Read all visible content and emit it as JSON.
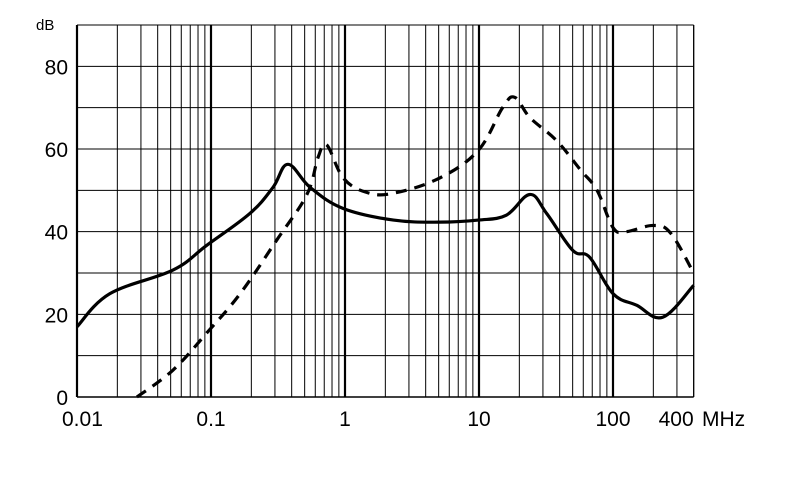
{
  "chart_data": {
    "type": "line",
    "title": "",
    "xlabel": "MHz",
    "ylabel": "dB",
    "x_scale": "log",
    "xlim": [
      0.01,
      400
    ],
    "ylim": [
      0,
      90
    ],
    "grid": true,
    "x_ticks": [
      {
        "value": 0.01,
        "label": "0.01"
      },
      {
        "value": 0.1,
        "label": "0.1"
      },
      {
        "value": 1,
        "label": "1"
      },
      {
        "value": 10,
        "label": "10"
      },
      {
        "value": 100,
        "label": "100"
      },
      {
        "value": 400,
        "label": "400"
      }
    ],
    "y_ticks": [
      {
        "value": 0,
        "label": "0"
      },
      {
        "value": 20,
        "label": "20"
      },
      {
        "value": 40,
        "label": "40"
      },
      {
        "value": 60,
        "label": "60"
      },
      {
        "value": 80,
        "label": "80"
      }
    ],
    "series": [
      {
        "style": "solid",
        "color": "#000000",
        "points": [
          [
            0.01,
            17
          ],
          [
            0.0176,
            25
          ],
          [
            0.052,
            30.7
          ],
          [
            0.093,
            36.7
          ],
          [
            0.195,
            44.4
          ],
          [
            0.29,
            50.7
          ],
          [
            0.375,
            56.3
          ],
          [
            0.55,
            50.7
          ],
          [
            0.97,
            45.6
          ],
          [
            2.3,
            42.8
          ],
          [
            5.1,
            42.3
          ],
          [
            9.9,
            42.8
          ],
          [
            16,
            44
          ],
          [
            24,
            49
          ],
          [
            32,
            44.4
          ],
          [
            50,
            35.5
          ],
          [
            67,
            33.8
          ],
          [
            100,
            25
          ],
          [
            150,
            22.2
          ],
          [
            235,
            19.3
          ],
          [
            400,
            27
          ]
        ]
      },
      {
        "style": "dashed",
        "color": "#000000",
        "points": [
          [
            0.028,
            0
          ],
          [
            0.052,
            6.5
          ],
          [
            0.093,
            15.5
          ],
          [
            0.165,
            25
          ],
          [
            0.31,
            38
          ],
          [
            0.52,
            49
          ],
          [
            0.63,
            58
          ],
          [
            0.73,
            61
          ],
          [
            0.97,
            53
          ],
          [
            1.45,
            49.5
          ],
          [
            2.3,
            49.3
          ],
          [
            5.1,
            53
          ],
          [
            9.9,
            59.7
          ],
          [
            15,
            70
          ],
          [
            18.5,
            72.5
          ],
          [
            24,
            67.6
          ],
          [
            38,
            62
          ],
          [
            57,
            55
          ],
          [
            76,
            50
          ],
          [
            100,
            41
          ],
          [
            125,
            40
          ],
          [
            200,
            41.5
          ],
          [
            270,
            39.6
          ],
          [
            400,
            30
          ]
        ]
      }
    ]
  }
}
